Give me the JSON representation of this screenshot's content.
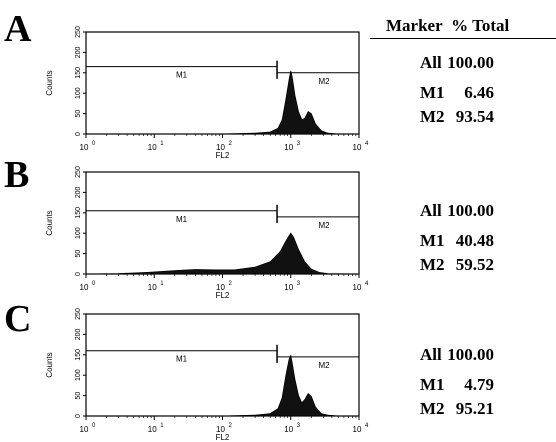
{
  "table_header": {
    "marker": "Marker",
    "pct_total": "% Total"
  },
  "panels": [
    {
      "letter": "A",
      "rows": [
        {
          "marker": "All",
          "value": "100.00"
        },
        {
          "marker": "M1",
          "value": "6.46"
        },
        {
          "marker": "M2",
          "value": "93.54"
        }
      ]
    },
    {
      "letter": "B",
      "rows": [
        {
          "marker": "All",
          "value": "100.00"
        },
        {
          "marker": "M1",
          "value": "40.48"
        },
        {
          "marker": "M2",
          "value": "59.52"
        }
      ]
    },
    {
      "letter": "C",
      "rows": [
        {
          "marker": "All",
          "value": "100.00"
        },
        {
          "marker": "M1",
          "value": "4.79"
        },
        {
          "marker": "M2",
          "value": "95.21"
        }
      ]
    }
  ],
  "chart_data": [
    {
      "type": "area",
      "panel": "A",
      "xlabel": "FL2",
      "ylabel": "Counts",
      "x_scale": "log",
      "xlim": [
        1,
        10000
      ],
      "ylim": [
        0,
        250
      ],
      "x_ticks": [
        {
          "base": "10",
          "exp": "0"
        },
        {
          "base": "10",
          "exp": "1"
        },
        {
          "base": "10",
          "exp": "2"
        },
        {
          "base": "10",
          "exp": "3"
        },
        {
          "base": "10",
          "exp": "4"
        }
      ],
      "y_ticks": [
        "0",
        "50",
        "100",
        "150",
        "200",
        "250"
      ],
      "gates": [
        {
          "name": "M1",
          "range": [
            1,
            630
          ],
          "level": 165
        },
        {
          "name": "M2",
          "range": [
            630,
            10000
          ],
          "level": 150
        }
      ],
      "x": [
        1,
        10,
        100,
        300,
        500,
        650,
        750,
        850,
        950,
        1000,
        1050,
        1150,
        1300,
        1450,
        1600,
        1800,
        2000,
        2300,
        2800,
        3500,
        5000,
        10000
      ],
      "y": [
        0,
        0,
        0,
        2,
        5,
        14,
        35,
        85,
        135,
        155,
        140,
        95,
        55,
        35,
        38,
        55,
        50,
        25,
        8,
        2,
        0,
        0
      ]
    },
    {
      "type": "area",
      "panel": "B",
      "xlabel": "FL2",
      "ylabel": "Counts",
      "x_scale": "log",
      "xlim": [
        1,
        10000
      ],
      "ylim": [
        0,
        250
      ],
      "x_ticks": [
        {
          "base": "10",
          "exp": "0"
        },
        {
          "base": "10",
          "exp": "1"
        },
        {
          "base": "10",
          "exp": "2"
        },
        {
          "base": "10",
          "exp": "3"
        },
        {
          "base": "10",
          "exp": "4"
        }
      ],
      "y_ticks": [
        "0",
        "50",
        "100",
        "150",
        "200",
        "250"
      ],
      "gates": [
        {
          "name": "M1",
          "range": [
            1,
            630
          ],
          "level": 155
        },
        {
          "name": "M2",
          "range": [
            630,
            10000
          ],
          "level": 140
        }
      ],
      "x": [
        1,
        3,
        8,
        20,
        40,
        80,
        150,
        300,
        500,
        700,
        900,
        1000,
        1100,
        1300,
        1600,
        2000,
        2600,
        3500,
        10000
      ],
      "y": [
        0,
        1,
        4,
        8,
        11,
        10,
        10,
        17,
        30,
        55,
        88,
        100,
        90,
        60,
        30,
        12,
        4,
        1,
        0
      ]
    },
    {
      "type": "area",
      "panel": "C",
      "xlabel": "FL2",
      "ylabel": "Counts",
      "x_scale": "log",
      "xlim": [
        1,
        10000
      ],
      "ylim": [
        0,
        250
      ],
      "x_ticks": [
        {
          "base": "10",
          "exp": "0"
        },
        {
          "base": "10",
          "exp": "1"
        },
        {
          "base": "10",
          "exp": "2"
        },
        {
          "base": "10",
          "exp": "3"
        },
        {
          "base": "10",
          "exp": "4"
        }
      ],
      "y_ticks": [
        "0",
        "50",
        "100",
        "150",
        "200",
        "250"
      ],
      "gates": [
        {
          "name": "M1",
          "range": [
            1,
            630
          ],
          "level": 160
        },
        {
          "name": "M2",
          "range": [
            630,
            10000
          ],
          "level": 145
        }
      ],
      "x": [
        1,
        10,
        100,
        300,
        500,
        650,
        750,
        850,
        950,
        1000,
        1050,
        1150,
        1300,
        1450,
        1600,
        1800,
        2000,
        2300,
        2800,
        3500,
        5000,
        10000
      ],
      "y": [
        0,
        0,
        0,
        2,
        6,
        18,
        45,
        100,
        140,
        148,
        130,
        90,
        50,
        32,
        40,
        55,
        48,
        22,
        6,
        2,
        0,
        0
      ]
    }
  ]
}
